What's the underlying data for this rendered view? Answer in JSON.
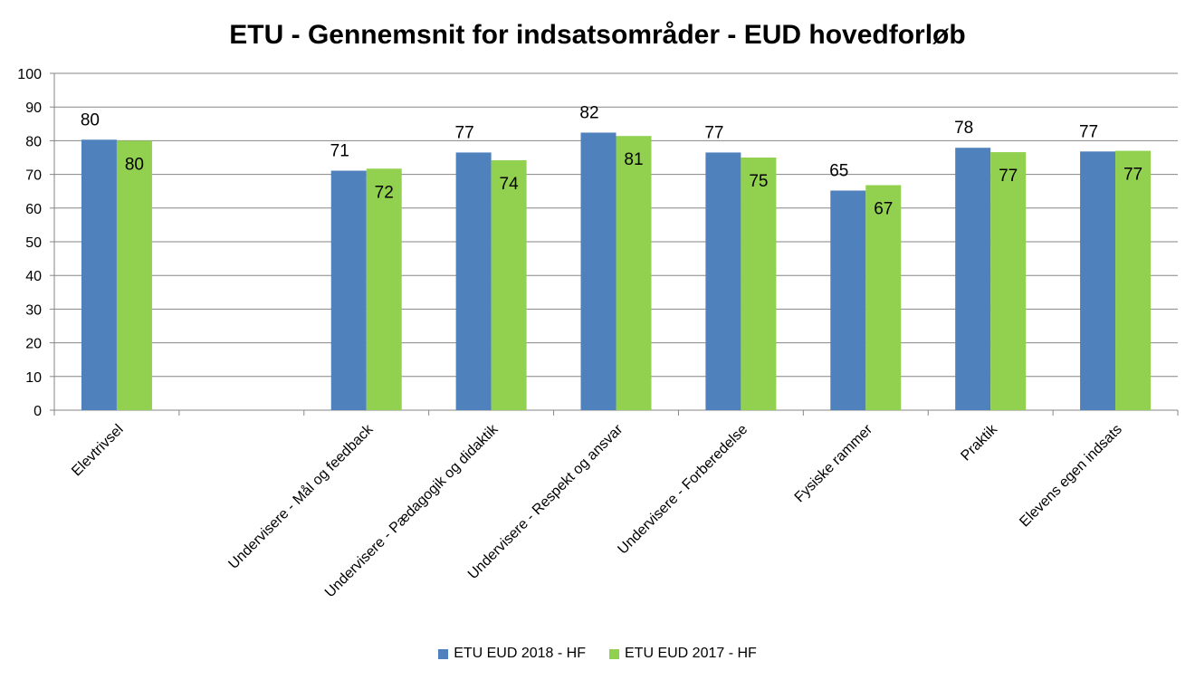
{
  "chart_data": {
    "type": "bar",
    "title": "ETU - Gennemsnit for indsatsområder - EUD hovedforløb",
    "xlabel": "",
    "ylabel": "",
    "ylim": [
      0,
      100
    ],
    "yticks": [
      "0",
      "10",
      "20",
      "30",
      "40",
      "50",
      "60",
      "70",
      "80",
      "90",
      "100"
    ],
    "grid": true,
    "legend_position": "bottom",
    "categories": [
      "Elevtrivsel",
      "",
      "Undervisere - Mål og feedback",
      "Undervisere - Pædagogik og didaktik",
      "Undervisere - Respekt og ansvar",
      "Undervisere - Forberedelse",
      "Fysiske rammer",
      "Praktik",
      "Elevens egen indsats"
    ],
    "series": [
      {
        "name": "ETU EUD 2018 - HF",
        "color": "#4f81bd",
        "values": [
          80.3,
          null,
          71.1,
          76.5,
          82.4,
          76.5,
          65.2,
          77.9,
          76.8
        ],
        "labels": [
          "80",
          "",
          "71",
          "77",
          "82",
          "77",
          "65",
          "78",
          "77"
        ]
      },
      {
        "name": "ETU EUD 2017 - HF",
        "color": "#92d050",
        "values": [
          80.0,
          null,
          71.7,
          74.2,
          81.4,
          75.0,
          66.8,
          76.6,
          77.0
        ],
        "labels": [
          "80",
          "",
          "72",
          "74",
          "81",
          "75",
          "67",
          "77",
          "77"
        ]
      }
    ]
  }
}
